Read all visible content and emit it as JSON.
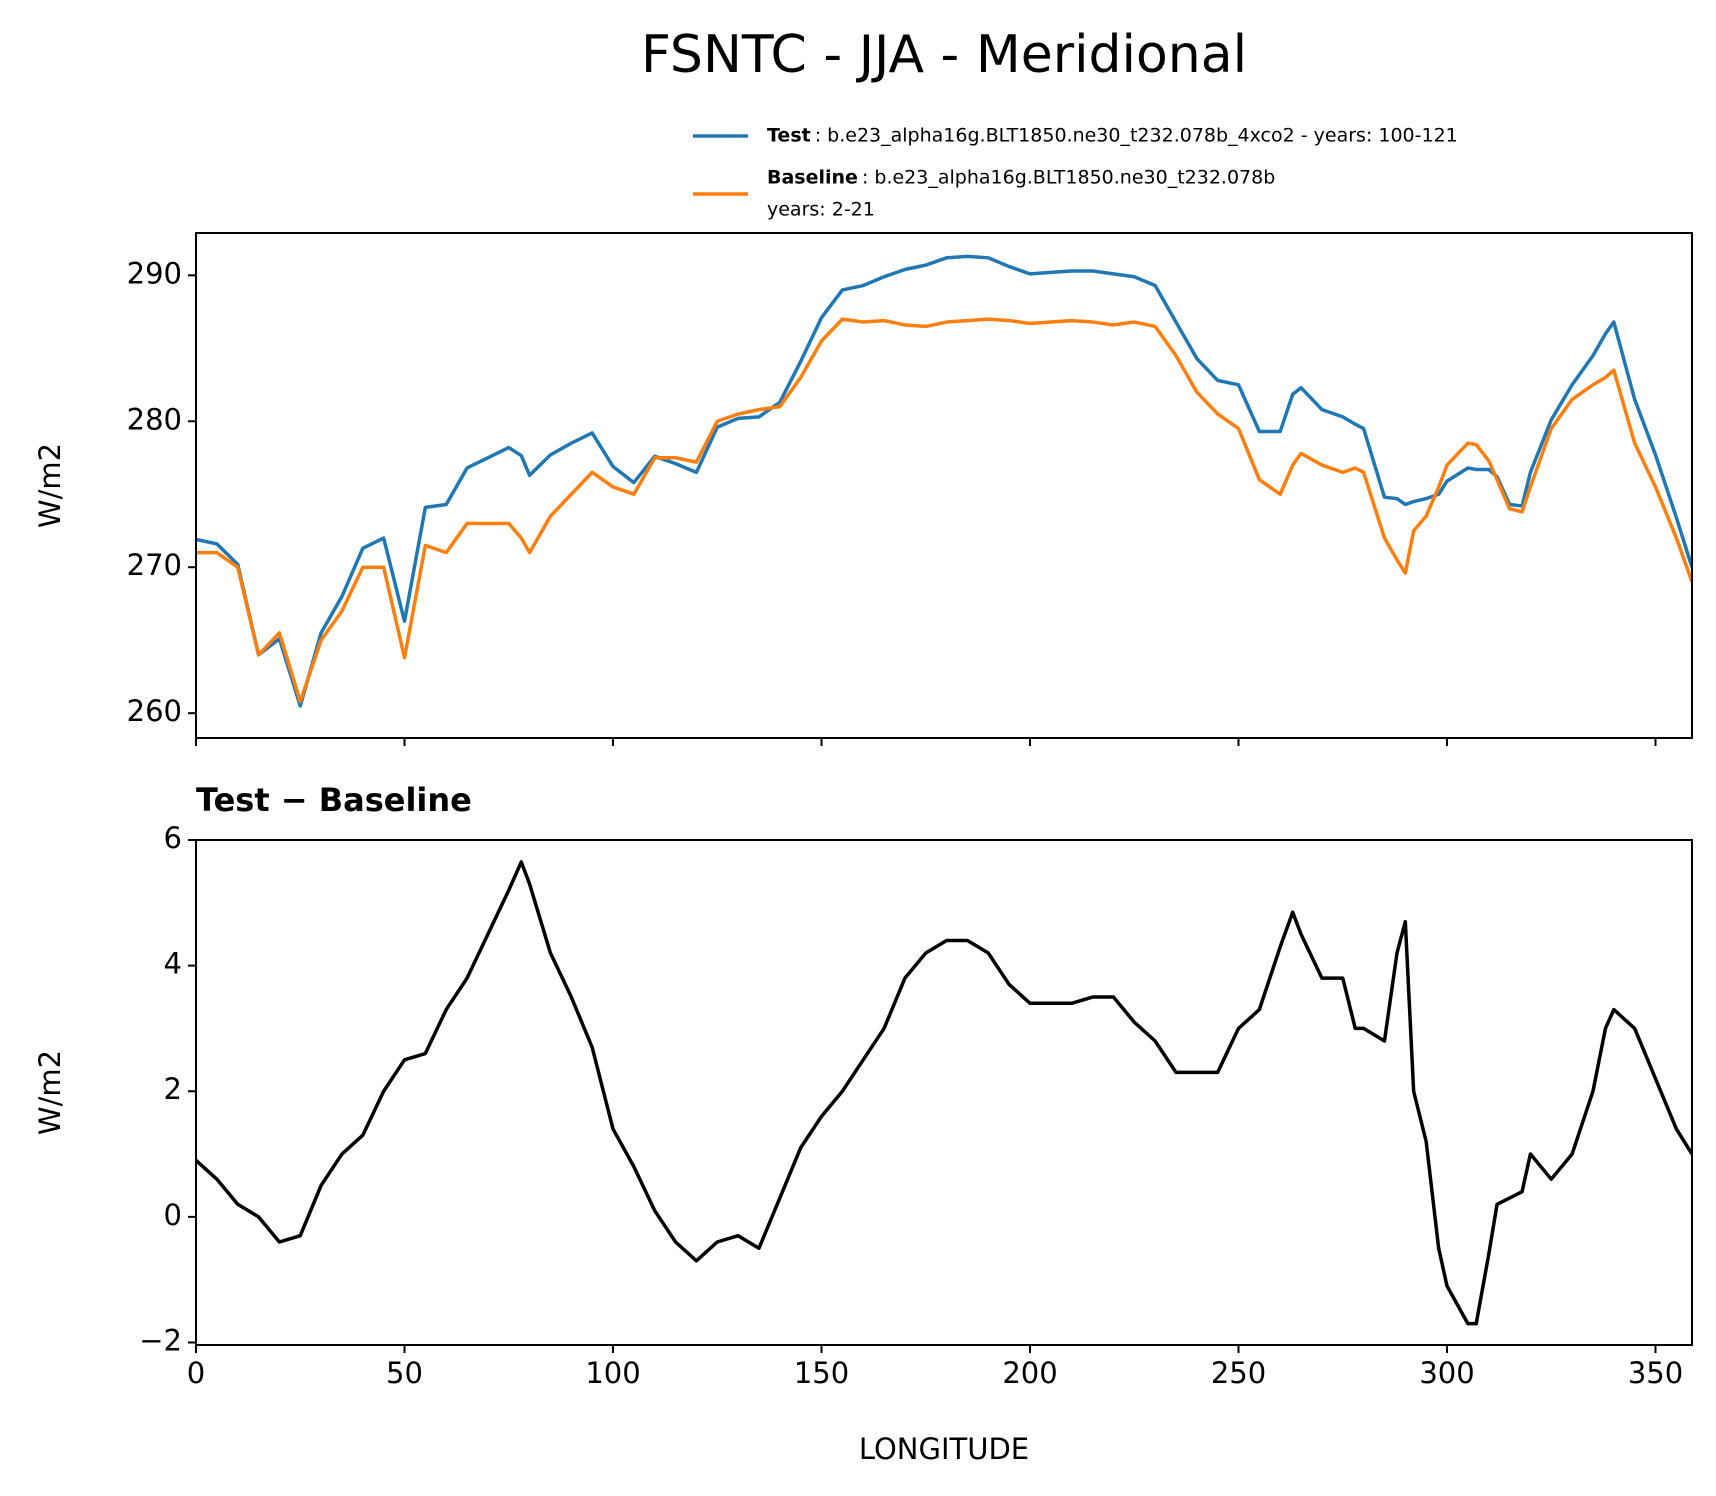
{
  "title": "FSNTC - JJA - Meridional",
  "chart_data": [
    {
      "type": "line",
      "ylabel": "W/m2",
      "x": [
        0,
        5,
        10,
        15,
        20,
        25,
        30,
        35,
        40,
        45,
        50,
        55,
        60,
        65,
        70,
        75,
        78,
        80,
        85,
        90,
        95,
        100,
        105,
        110,
        115,
        120,
        125,
        130,
        135,
        140,
        145,
        150,
        155,
        160,
        165,
        170,
        175,
        180,
        185,
        190,
        195,
        200,
        205,
        210,
        215,
        220,
        225,
        230,
        235,
        240,
        245,
        250,
        255,
        260,
        263,
        265,
        270,
        275,
        278,
        280,
        285,
        288,
        290,
        292,
        295,
        298,
        300,
        305,
        307,
        310,
        312,
        315,
        318,
        320,
        325,
        330,
        335,
        338,
        340,
        345,
        350,
        355,
        358.75
      ],
      "series": [
        {
          "name": "Test",
          "label_lines": [
            ": b.e23_alpha16g.BLT1850.ne30_t232.078b_4xco2 - years: 100-121"
          ],
          "color": "#1f77b4",
          "values": [
            271.9,
            271.6,
            270.2,
            264.0,
            265.1,
            260.5,
            265.5,
            268.0,
            271.3,
            272.0,
            266.3,
            274.1,
            274.3,
            276.8,
            277.5,
            278.2,
            277.65,
            276.3,
            277.7,
            278.5,
            279.2,
            276.9,
            275.8,
            277.6,
            277.1,
            276.5,
            279.6,
            280.2,
            280.3,
            281.3,
            284.1,
            287.1,
            289.0,
            289.3,
            289.9,
            290.4,
            290.7,
            291.2,
            291.3,
            291.2,
            290.6,
            290.1,
            290.2,
            290.3,
            290.3,
            290.1,
            289.9,
            289.3,
            286.8,
            284.3,
            282.8,
            282.5,
            279.3,
            279.3,
            281.85,
            282.3,
            280.8,
            280.3,
            279.8,
            279.5,
            274.8,
            274.7,
            274.3,
            274.5,
            274.7,
            275.0,
            275.9,
            276.8,
            276.7,
            276.7,
            276.2,
            274.3,
            274.2,
            276.5,
            280.1,
            282.5,
            284.5,
            286.0,
            286.8,
            281.5,
            277.7,
            273.4,
            270.0
          ]
        },
        {
          "name": "Baseline",
          "label_lines": [
            ": b.e23_alpha16g.BLT1850.ne30_t232.078b",
            "years: 2-21"
          ],
          "color": "#ff7f0e",
          "values": [
            271.0,
            271.0,
            270.0,
            264.0,
            265.5,
            260.8,
            265.0,
            267.0,
            270.0,
            270.0,
            263.8,
            271.5,
            271.0,
            273.0,
            273.0,
            273.0,
            272.0,
            271.0,
            273.5,
            275.0,
            276.5,
            275.5,
            275.0,
            277.5,
            277.5,
            277.2,
            280.0,
            280.5,
            280.8,
            281.0,
            283.0,
            285.5,
            287.0,
            286.8,
            286.9,
            286.6,
            286.5,
            286.8,
            286.9,
            287.0,
            286.9,
            286.7,
            286.8,
            286.9,
            286.8,
            286.6,
            286.8,
            286.5,
            284.5,
            282.0,
            280.5,
            279.5,
            276.0,
            275.0,
            277.0,
            277.8,
            277.0,
            276.5,
            276.8,
            276.5,
            272.0,
            270.5,
            269.6,
            272.5,
            273.5,
            275.5,
            277.0,
            278.5,
            278.4,
            277.3,
            276.0,
            274.0,
            273.8,
            275.5,
            279.5,
            281.5,
            282.5,
            283.0,
            283.5,
            278.5,
            275.5,
            272.0,
            269.0
          ]
        }
      ],
      "xlim": [
        0,
        358.75
      ],
      "xticks": [
        0,
        50,
        100,
        150,
        200,
        250,
        300,
        350
      ],
      "ylim": [
        258.3,
        292.9
      ],
      "yticks": [
        260,
        270,
        280,
        290
      ]
    },
    {
      "type": "line",
      "title": "Test − Baseline",
      "xlabel": "LONGITUDE",
      "ylabel": "W/m2",
      "color": "#000000",
      "x": [
        0,
        5,
        10,
        15,
        20,
        25,
        30,
        35,
        40,
        45,
        50,
        55,
        60,
        65,
        70,
        75,
        78,
        80,
        85,
        90,
        95,
        100,
        105,
        110,
        115,
        120,
        125,
        130,
        135,
        140,
        145,
        150,
        155,
        160,
        165,
        170,
        175,
        180,
        185,
        190,
        195,
        200,
        205,
        210,
        215,
        220,
        225,
        230,
        235,
        240,
        245,
        250,
        255,
        260,
        263,
        265,
        270,
        275,
        278,
        280,
        285,
        288,
        290,
        292,
        295,
        298,
        300,
        305,
        307,
        310,
        312,
        315,
        318,
        320,
        325,
        330,
        335,
        338,
        340,
        345,
        350,
        355,
        358.75
      ],
      "values": [
        0.9,
        0.6,
        0.2,
        0.0,
        -0.4,
        -0.3,
        0.5,
        1.0,
        1.3,
        2.0,
        2.5,
        2.6,
        3.3,
        3.8,
        4.5,
        5.2,
        5.65,
        5.3,
        4.2,
        3.5,
        2.7,
        1.4,
        0.8,
        0.1,
        -0.4,
        -0.7,
        -0.4,
        -0.3,
        -0.5,
        0.3,
        1.1,
        1.6,
        2.0,
        2.5,
        3.0,
        3.8,
        4.2,
        4.4,
        4.4,
        4.2,
        3.7,
        3.4,
        3.4,
        3.4,
        3.5,
        3.5,
        3.1,
        2.8,
        2.3,
        2.3,
        2.3,
        3.0,
        3.3,
        4.3,
        4.85,
        4.5,
        3.8,
        3.8,
        3.0,
        3.0,
        2.8,
        4.2,
        4.7,
        2.0,
        1.2,
        -0.5,
        -1.1,
        -1.7,
        -1.7,
        -0.6,
        0.2,
        0.3,
        0.4,
        1.0,
        0.6,
        1.0,
        2.0,
        3.0,
        3.3,
        3.0,
        2.2,
        1.4,
        1.0
      ],
      "xlim": [
        0,
        358.75
      ],
      "xticks": [
        0,
        50,
        100,
        150,
        200,
        250,
        300,
        350
      ],
      "ylim": [
        -2.04,
        6
      ],
      "yticks": [
        {
          "value": -2,
          "label": "−2"
        },
        0,
        2,
        4,
        6
      ]
    }
  ]
}
